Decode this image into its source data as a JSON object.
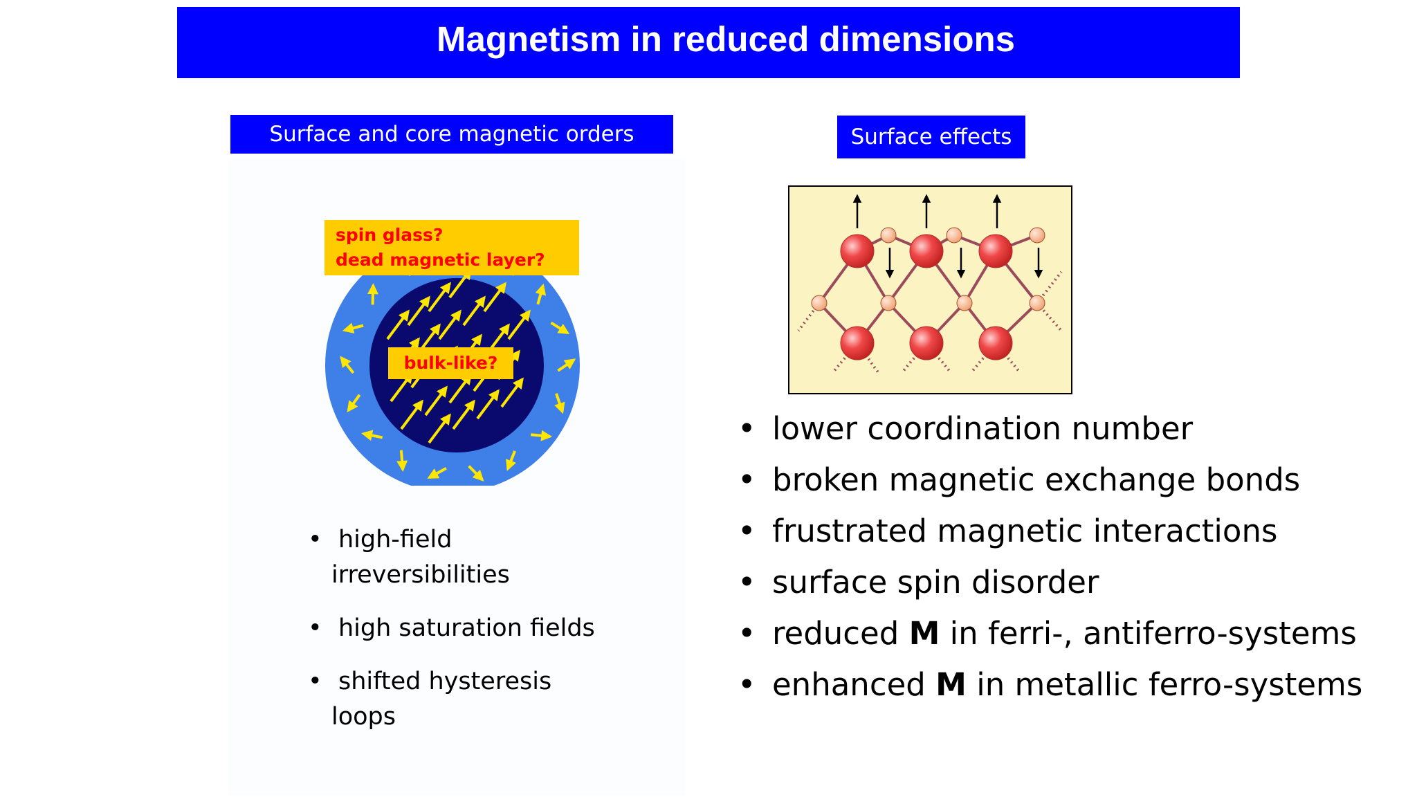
{
  "slide": {
    "title": "Magnetism in reduced dimensions",
    "left_section": {
      "label": "Surface and core magnetic orders",
      "particle_labels": {
        "surface_line1": "spin glass?",
        "surface_line2": "dead magnetic layer?",
        "core": "bulk-like?"
      },
      "bullets": [
        {
          "line1": "high-field",
          "line2": "irreversibilities"
        },
        {
          "line1": "high saturation fields",
          "line2": ""
        },
        {
          "line1": "shifted hysteresis",
          "line2": "loops"
        }
      ]
    },
    "right_section": {
      "label": "Surface effects",
      "bullets": [
        {
          "text": "lower coordination number"
        },
        {
          "text": "broken magnetic exchange bonds"
        },
        {
          "text": "frustrated magnetic interactions"
        },
        {
          "text": "surface spin disorder"
        },
        {
          "pre": "reduced ",
          "bold": "M",
          "post": " in ferri-, antiferro-systems"
        },
        {
          "pre": "enhanced ",
          "bold": "M",
          "post": " in metallic ferro-systems"
        }
      ]
    },
    "colors": {
      "header_blue": "#0000ff",
      "label_yellow": "#ffcc00",
      "label_red": "#ff0000",
      "shell_blue": "#3f7fe8",
      "core_navy": "#0a0a6e",
      "arrow_yellow": "#ffe600",
      "lattice_bg": "#fbf3c2",
      "atom_red": "#f04848",
      "bond_color": "#9a4a5a"
    },
    "bullet_glyph": "•"
  }
}
